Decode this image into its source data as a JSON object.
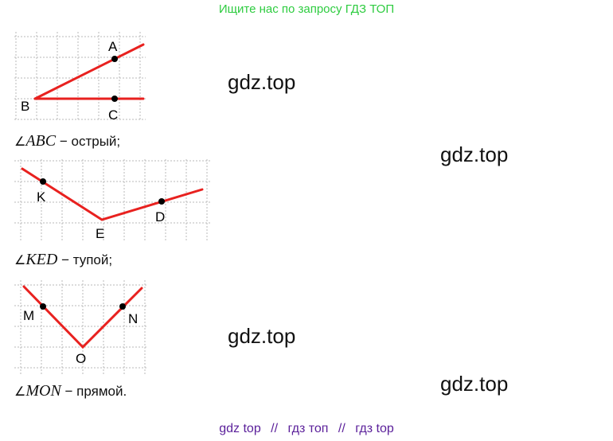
{
  "banner": "Ищите нас по запросу ГДЗ ТОП",
  "watermarks": [
    "gdz.top",
    "gdz.top",
    "gdz.top",
    "gdz.top"
  ],
  "figures": [
    {
      "points": [
        "A",
        "B",
        "C"
      ],
      "caption": {
        "symbol": "∠",
        "name": "ABC",
        "text": " − острый;"
      }
    },
    {
      "points": [
        "K",
        "E",
        "D"
      ],
      "caption": {
        "symbol": "∠",
        "name": "KED",
        "text": " − тупой;"
      }
    },
    {
      "points": [
        "M",
        "O",
        "N"
      ],
      "caption": {
        "symbol": "∠",
        "name": "MON",
        "text": " − прямой."
      }
    }
  ],
  "footer": {
    "items": [
      "gdz top",
      "гдз топ",
      "гдз top"
    ],
    "separator": "//"
  },
  "colors": {
    "banner": "#2ecc40",
    "ray": "#e8211f",
    "footer": "#5a1f9a"
  }
}
